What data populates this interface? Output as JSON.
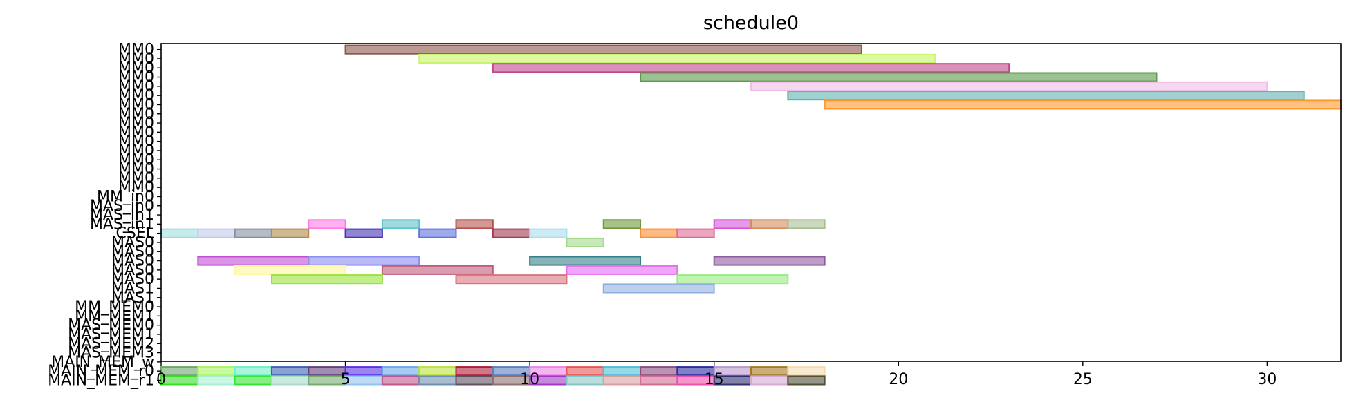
{
  "chart_data": {
    "type": "gantt",
    "title": "schedule0",
    "xlabel": "",
    "ylabel": "",
    "xlim": [
      0,
      32
    ],
    "xticks": [
      0,
      5,
      10,
      15,
      20,
      25,
      30
    ],
    "grid": false,
    "legend": "none",
    "rows": [
      "MM0",
      "MM0",
      "MM0",
      "MM0",
      "MM0",
      "MM0",
      "MM0",
      "MM0",
      "MM0",
      "MM0",
      "MM0",
      "MM0",
      "MM0",
      "MM0",
      "MM0",
      "MM0",
      "MM_in0",
      "MAS_in0",
      "MAS_in1",
      "MAS_in1",
      "CSEL",
      "MAS0",
      "MAS0",
      "MAS0",
      "MAS0",
      "MAS0",
      "MAS1",
      "MAS1",
      "MM_MEM0",
      "MM_MEM1",
      "MAS_MEM0",
      "MAS_MEM1",
      "MAS_MEM2",
      "MAS_MEM3",
      "MAIN_MEM_w",
      "MAIN_MEM_r0",
      "MAIN_MEM_r1"
    ],
    "tasks": [
      {
        "row": 0,
        "start": 5,
        "end": 19,
        "color": "#8c564b"
      },
      {
        "row": 1,
        "start": 7,
        "end": 21,
        "color": "#c8f56a"
      },
      {
        "row": 2,
        "start": 9,
        "end": 23,
        "color": "#c2478a"
      },
      {
        "row": 3,
        "start": 13,
        "end": 27,
        "color": "#5a9a48"
      },
      {
        "row": 4,
        "start": 16,
        "end": 30,
        "color": "#efbde6"
      },
      {
        "row": 5,
        "start": 17,
        "end": 31,
        "color": "#5fb3b3"
      },
      {
        "row": 6,
        "start": 18,
        "end": 32,
        "color": "#ff9a2e"
      },
      {
        "row": 19,
        "start": 4,
        "end": 5,
        "color": "#ff7be8"
      },
      {
        "row": 19,
        "start": 6,
        "end": 7,
        "color": "#5ec2c8"
      },
      {
        "row": 19,
        "start": 8,
        "end": 9,
        "color": "#b5514c"
      },
      {
        "row": 19,
        "start": 12,
        "end": 13,
        "color": "#6e9a3c"
      },
      {
        "row": 19,
        "start": 15,
        "end": 16,
        "color": "#d954d9"
      },
      {
        "row": 19,
        "start": 16,
        "end": 17,
        "color": "#d38c5c"
      },
      {
        "row": 19,
        "start": 17,
        "end": 18,
        "color": "#a8bf93"
      },
      {
        "row": 20,
        "start": 0,
        "end": 1,
        "color": "#9fe0dc"
      },
      {
        "row": 20,
        "start": 1,
        "end": 2,
        "color": "#c5c9ec"
      },
      {
        "row": 20,
        "start": 2,
        "end": 3,
        "color": "#8590a0"
      },
      {
        "row": 20,
        "start": 3,
        "end": 4,
        "color": "#b08b4a"
      },
      {
        "row": 20,
        "start": 5,
        "end": 6,
        "color": "#4433b3"
      },
      {
        "row": 20,
        "start": 7,
        "end": 8,
        "color": "#5c73e0"
      },
      {
        "row": 20,
        "start": 9,
        "end": 10,
        "color": "#a33a50"
      },
      {
        "row": 20,
        "start": 10,
        "end": 11,
        "color": "#a9e0ee"
      },
      {
        "row": 20,
        "start": 13,
        "end": 14,
        "color": "#ff8c2e"
      },
      {
        "row": 20,
        "start": 14,
        "end": 15,
        "color": "#e06a96"
      },
      {
        "row": 21,
        "start": 11,
        "end": 12,
        "color": "#a5d98a"
      },
      {
        "row": 23,
        "start": 1,
        "end": 4,
        "color": "#c14fd4"
      },
      {
        "row": 23,
        "start": 4,
        "end": 7,
        "color": "#8c8ef0"
      },
      {
        "row": 23,
        "start": 10,
        "end": 13,
        "color": "#357f88"
      },
      {
        "row": 23,
        "start": 15,
        "end": 18,
        "color": "#8e5ba0"
      },
      {
        "row": 24,
        "start": 2,
        "end": 5,
        "color": "#fff59c"
      },
      {
        "row": 24,
        "start": 6,
        "end": 9,
        "color": "#c25a7a"
      },
      {
        "row": 24,
        "start": 11,
        "end": 14,
        "color": "#e66cf3"
      },
      {
        "row": 25,
        "start": 3,
        "end": 6,
        "color": "#9ae23c"
      },
      {
        "row": 25,
        "start": 8,
        "end": 11,
        "color": "#d9747e"
      },
      {
        "row": 25,
        "start": 14,
        "end": 17,
        "color": "#98ec80"
      },
      {
        "row": 26,
        "start": 12,
        "end": 15,
        "color": "#8fb0de"
      },
      {
        "row": 35,
        "start": 0,
        "end": 1,
        "color": "#6aa86a"
      },
      {
        "row": 35,
        "start": 1,
        "end": 2,
        "color": "#a9f562"
      },
      {
        "row": 35,
        "start": 2,
        "end": 3,
        "color": "#6ef0c8"
      },
      {
        "row": 35,
        "start": 3,
        "end": 4,
        "color": "#3a64b0"
      },
      {
        "row": 35,
        "start": 4,
        "end": 5,
        "color": "#65407e"
      },
      {
        "row": 35,
        "start": 5,
        "end": 6,
        "color": "#5c30e8"
      },
      {
        "row": 35,
        "start": 6,
        "end": 7,
        "color": "#6aaae8"
      },
      {
        "row": 35,
        "start": 7,
        "end": 8,
        "color": "#bde33f"
      },
      {
        "row": 35,
        "start": 8,
        "end": 9,
        "color": "#b01c38"
      },
      {
        "row": 35,
        "start": 9,
        "end": 10,
        "color": "#5b7fbf"
      },
      {
        "row": 35,
        "start": 10,
        "end": 11,
        "color": "#eb86e6"
      },
      {
        "row": 35,
        "start": 11,
        "end": 12,
        "color": "#e65656"
      },
      {
        "row": 35,
        "start": 12,
        "end": 13,
        "color": "#4dbfd8"
      },
      {
        "row": 35,
        "start": 13,
        "end": 14,
        "color": "#8e4d82"
      },
      {
        "row": 35,
        "start": 14,
        "end": 15,
        "color": "#2c2ca0"
      },
      {
        "row": 35,
        "start": 15,
        "end": 16,
        "color": "#b99ad0"
      },
      {
        "row": 35,
        "start": 16,
        "end": 17,
        "color": "#a67a20"
      },
      {
        "row": 35,
        "start": 17,
        "end": 18,
        "color": "#f4dcb0"
      },
      {
        "row": 36,
        "start": 0,
        "end": 1,
        "color": "#3ade2a"
      },
      {
        "row": 36,
        "start": 1,
        "end": 2,
        "color": "#a6f0d0"
      },
      {
        "row": 36,
        "start": 2,
        "end": 3,
        "color": "#36e636"
      },
      {
        "row": 36,
        "start": 3,
        "end": 4,
        "color": "#a8dcc8"
      },
      {
        "row": 36,
        "start": 4,
        "end": 5,
        "color": "#75ad70"
      },
      {
        "row": 36,
        "start": 5,
        "end": 6,
        "color": "#93c3f0"
      },
      {
        "row": 36,
        "start": 6,
        "end": 7,
        "color": "#c2568f"
      },
      {
        "row": 36,
        "start": 7,
        "end": 8,
        "color": "#6f8fb0"
      },
      {
        "row": 36,
        "start": 8,
        "end": 9,
        "color": "#605060"
      },
      {
        "row": 36,
        "start": 9,
        "end": 10,
        "color": "#8f7070"
      },
      {
        "row": 36,
        "start": 10,
        "end": 11,
        "color": "#a03ac6"
      },
      {
        "row": 36,
        "start": 11,
        "end": 12,
        "color": "#87c6c6"
      },
      {
        "row": 36,
        "start": 12,
        "end": 13,
        "color": "#d9a0a0"
      },
      {
        "row": 36,
        "start": 13,
        "end": 14,
        "color": "#d06e96"
      },
      {
        "row": 36,
        "start": 14,
        "end": 15,
        "color": "#ee4eae"
      },
      {
        "row": 36,
        "start": 15,
        "end": 16,
        "color": "#303070"
      },
      {
        "row": 36,
        "start": 16,
        "end": 17,
        "color": "#d4a9d4"
      },
      {
        "row": 36,
        "start": 17,
        "end": 18,
        "color": "#505038"
      }
    ]
  }
}
